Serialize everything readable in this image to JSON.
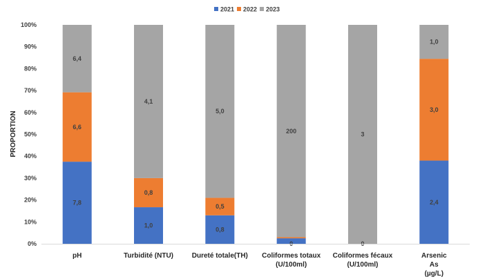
{
  "chart_data": {
    "type": "bar",
    "stacked": "percent",
    "ylabel": "PROPORTION",
    "ylim": [
      0,
      100
    ],
    "y_ticks": [
      "0%",
      "10%",
      "20%",
      "30%",
      "40%",
      "50%",
      "60%",
      "70%",
      "80%",
      "90%",
      "100%"
    ],
    "legend_position": "top-center",
    "grid": false,
    "categories": [
      [
        "pH"
      ],
      [
        "Turbidité (NTU)"
      ],
      [
        "Dureté totale(TH)"
      ],
      [
        "Coliformes totaux",
        "(U/100ml)"
      ],
      [
        "Coliformes fécaux",
        "(U/100ml)"
      ],
      [
        "Arsenic",
        "As",
        "(µg/L)"
      ]
    ],
    "series": [
      {
        "name": "2021",
        "color": "#4472C4",
        "shares": [
          37.5,
          16.7,
          13.0,
          2.5,
          0,
          38.0
        ],
        "labels": [
          "7,8",
          "1,0",
          "0,8",
          "0",
          "",
          "2,4"
        ]
      },
      {
        "name": "2022",
        "color": "#ED7D31",
        "shares": [
          31.7,
          13.3,
          8.0,
          0.5,
          0,
          46.5
        ],
        "labels": [
          "6,6",
          "0,8",
          "0,5",
          "0",
          "",
          "3,0"
        ]
      },
      {
        "name": "2023",
        "color": "#A5A5A5",
        "shares": [
          30.8,
          70.0,
          79.0,
          97.0,
          100,
          15.5
        ],
        "labels": [
          "6,4",
          "4,1",
          "5,0",
          "200",
          "3",
          "1,0"
        ]
      }
    ],
    "extra_labels": [
      {
        "category": 4,
        "series": 0,
        "text": "0"
      }
    ]
  }
}
